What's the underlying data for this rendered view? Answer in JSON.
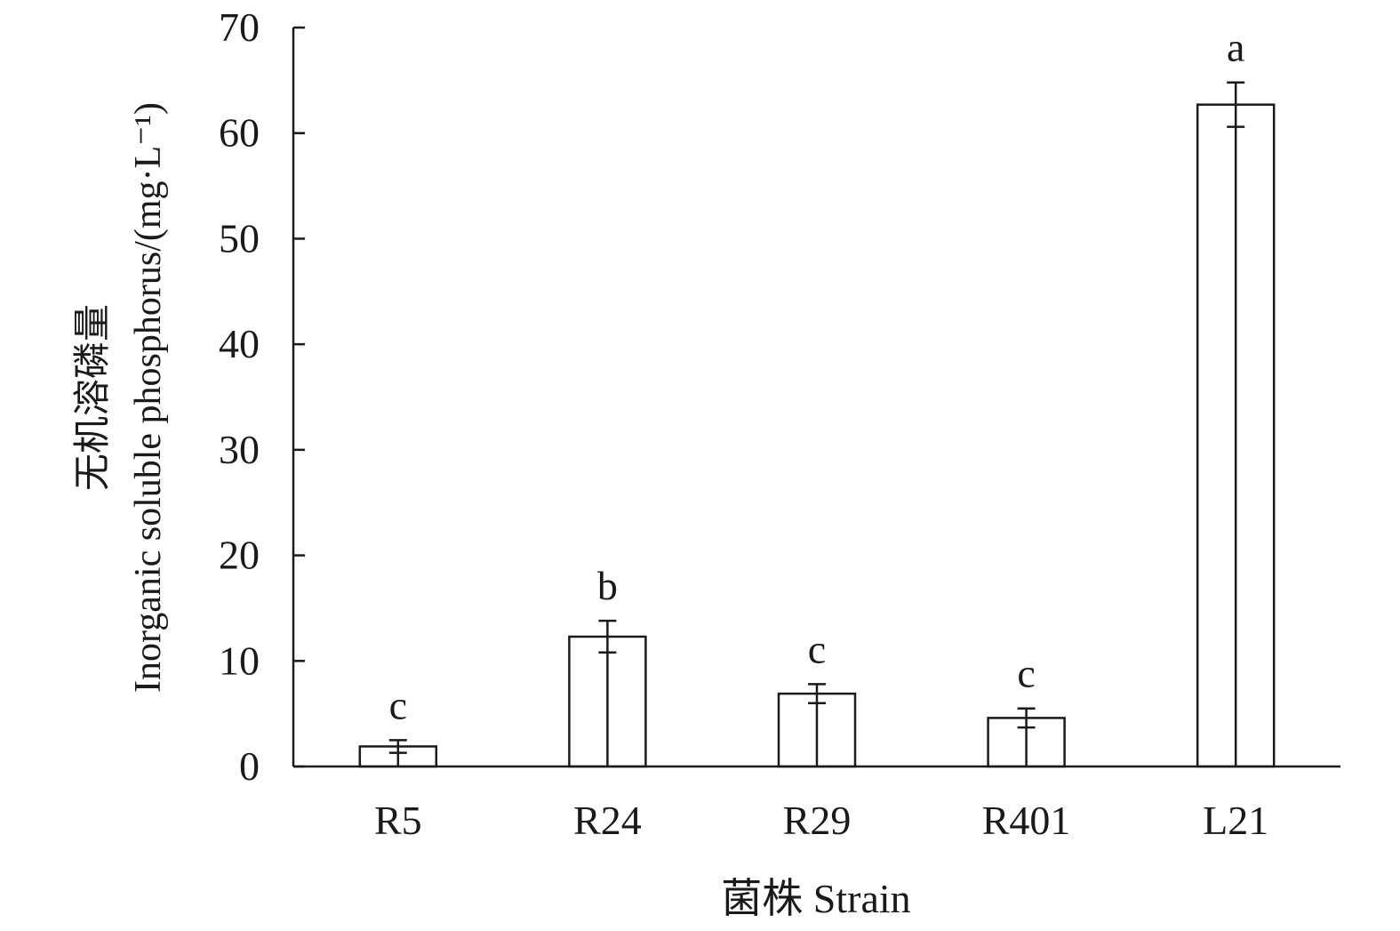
{
  "chart_data": {
    "type": "bar",
    "categories": [
      "R5",
      "R24",
      "R29",
      "R401",
      "L21"
    ],
    "values": [
      1.9,
      12.3,
      6.9,
      4.6,
      62.7
    ],
    "error": [
      0.6,
      1.5,
      0.9,
      0.9,
      2.1
    ],
    "significance": [
      "c",
      "b",
      "c",
      "c",
      "a"
    ],
    "ylabel_line1": "无机溶磷量",
    "ylabel_line2": "Inorganic soluble phosphorus/(mg·L⁻¹)",
    "xlabel": "菌株 Strain",
    "ylim": [
      0,
      70
    ],
    "yticks": [
      0,
      10,
      20,
      30,
      40,
      50,
      60,
      70
    ],
    "bar_fill": "#ffffff",
    "bar_stroke": "#1a1a1a",
    "grid": false,
    "legend": "none"
  }
}
